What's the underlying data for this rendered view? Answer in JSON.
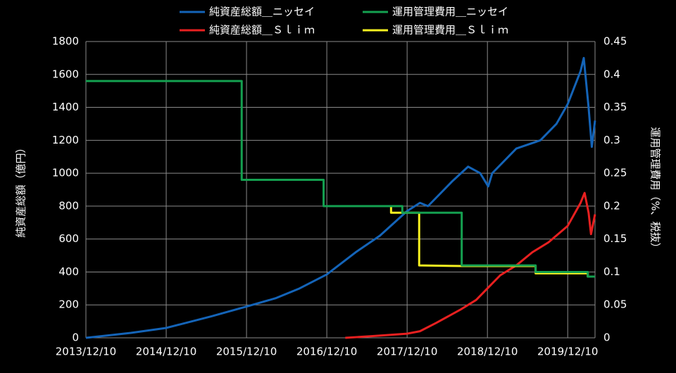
{
  "chart_data": {
    "type": "line",
    "y_label": "純資産総額（億円）",
    "y2_label": "運用管理費用（%、税抜）",
    "xlim": [
      2013.94,
      2020.28
    ],
    "xticks": [
      {
        "value": 2013.94,
        "label": "2013/12/10"
      },
      {
        "value": 2014.94,
        "label": "2014/12/10"
      },
      {
        "value": 2015.94,
        "label": "2015/12/10"
      },
      {
        "value": 2016.94,
        "label": "2016/12/10"
      },
      {
        "value": 2017.94,
        "label": "2017/12/10"
      },
      {
        "value": 2018.94,
        "label": "2018/12/10"
      },
      {
        "value": 2019.94,
        "label": "2019/12/10"
      }
    ],
    "ylim": [
      0,
      1800
    ],
    "yticks": [
      0,
      200,
      400,
      600,
      800,
      1000,
      1200,
      1400,
      1600,
      1800
    ],
    "y2lim": [
      0,
      0.45
    ],
    "y2ticks": [
      0,
      0.05,
      0.1,
      0.15,
      0.2,
      0.25,
      0.3,
      0.35,
      0.4,
      0.45
    ],
    "grid": true,
    "series": [
      {
        "name": "純資産総額＿ニッセイ",
        "color": "#1464b8",
        "x": [
          2013.94,
          2014.5,
          2014.94,
          2015.5,
          2015.94,
          2016.3,
          2016.6,
          2016.94,
          2017.3,
          2017.6,
          2017.94,
          2018.1,
          2018.2,
          2018.5,
          2018.7,
          2018.85,
          2018.95,
          2019.0,
          2019.3,
          2019.6,
          2019.8,
          2019.94,
          2020.1,
          2020.14,
          2020.2,
          2020.24,
          2020.28
        ],
        "values": [
          0,
          30,
          60,
          130,
          190,
          240,
          300,
          385,
          520,
          620,
          770,
          820,
          800,
          950,
          1040,
          1000,
          920,
          1000,
          1150,
          1200,
          1300,
          1420,
          1620,
          1700,
          1400,
          1160,
          1320
        ]
      },
      {
        "name": "運用管理費用＿ニッセイ",
        "color": "#14a050",
        "axis": "y2",
        "x": [
          2013.94,
          2015.88,
          2015.88,
          2016.9,
          2016.9,
          2017.88,
          2017.88,
          2018.62,
          2018.62,
          2019.54,
          2019.54,
          2020.19,
          2020.19,
          2020.28
        ],
        "values": [
          0.39,
          0.39,
          0.24,
          0.24,
          0.2,
          0.2,
          0.19,
          0.19,
          0.11,
          0.11,
          0.1,
          0.1,
          0.093,
          0.093
        ]
      },
      {
        "name": "純資産総額＿Ｓｌｉｍ",
        "color": "#e82020",
        "x": [
          2017.17,
          2017.5,
          2017.94,
          2018.1,
          2018.3,
          2018.6,
          2018.8,
          2018.94,
          2019.1,
          2019.3,
          2019.5,
          2019.7,
          2019.94,
          2020.1,
          2020.15,
          2020.2,
          2020.23,
          2020.28
        ],
        "values": [
          0,
          10,
          25,
          40,
          90,
          170,
          230,
          300,
          380,
          440,
          520,
          580,
          680,
          820,
          880,
          760,
          630,
          750
        ]
      },
      {
        "name": "運用管理費用＿Ｓｌｉｍ",
        "color": "#f5f020",
        "axis": "y2",
        "x": [
          2017.74,
          2017.74,
          2018.09,
          2018.09,
          2018.62,
          2019.54,
          2019.54,
          2020.19,
          2020.19,
          2020.28
        ],
        "values": [
          0.2,
          0.19,
          0.19,
          0.11,
          0.109,
          0.109,
          0.098,
          0.098,
          0.093,
          0.093
        ]
      }
    ]
  }
}
